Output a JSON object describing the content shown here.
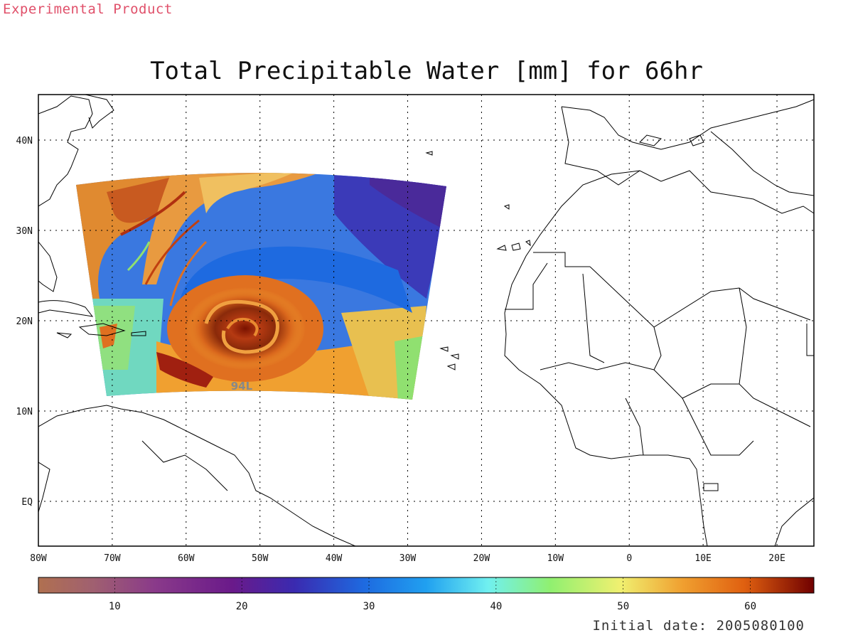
{
  "header": {
    "product_label": "Experimental Product"
  },
  "map": {
    "title": "Total Precipitable Water [mm] for 66hr",
    "storm_label": "94L",
    "lon_ticks": [
      "80W",
      "70W",
      "60W",
      "50W",
      "40W",
      "30W",
      "20W",
      "10W",
      "0",
      "10E",
      "20E"
    ],
    "lat_ticks": [
      "40N",
      "30N",
      "20N",
      "10N",
      "EQ"
    ]
  },
  "colorbar": {
    "ticks": [
      "10",
      "20",
      "30",
      "40",
      "50",
      "60"
    ],
    "min": 4,
    "max": 65
  },
  "footer": {
    "initial_date": "Initial date: 2005080100"
  },
  "colors": {
    "product_label": "#e0506a",
    "storm_label": "#888888"
  }
}
